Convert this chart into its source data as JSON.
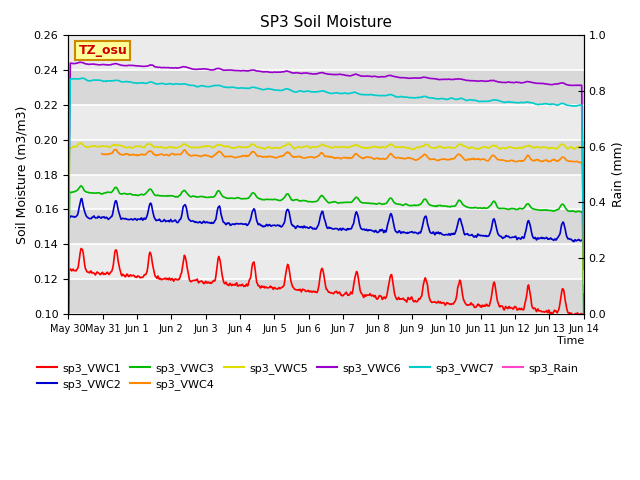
{
  "title": "SP3 Soil Moisture",
  "xlabel": "Time",
  "ylabel_left": "Soil Moisture (m3/m3)",
  "ylabel_right": "Rain (mm)",
  "ylim_left": [
    0.1,
    0.26
  ],
  "ylim_right": [
    0.0,
    1.0
  ],
  "yticks_left": [
    0.1,
    0.12,
    0.14,
    0.16,
    0.18,
    0.2,
    0.22,
    0.24,
    0.26
  ],
  "yticks_right": [
    0.0,
    0.2,
    0.4,
    0.6,
    0.8,
    1.0
  ],
  "num_days": 15,
  "colors": {
    "sp3_VWC1": "#ff0000",
    "sp3_VWC2": "#0000cc",
    "sp3_VWC3": "#00bb00",
    "sp3_VWC4": "#ff8800",
    "sp3_VWC5": "#dddd00",
    "sp3_VWC6": "#9900cc",
    "sp3_VWC7": "#00cccc",
    "sp3_Rain": "#ff44cc"
  },
  "xtick_labels": [
    "May 30",
    "May 31",
    "Jun 1",
    "Jun 2",
    "Jun 3",
    "Jun 4",
    "Jun 5",
    "Jun 6",
    "Jun 7",
    "Jun 8",
    "Jun 9",
    "Jun 10",
    "Jun 11",
    "Jun 12",
    "Jun 13",
    "Jun 14"
  ],
  "annotation_text": "TZ_osu",
  "annotation_color": "#cc0000",
  "annotation_bg": "#ffff99",
  "annotation_border": "#cc8800",
  "bg_dark": "#d8d8d8",
  "bg_light": "#ebebeb",
  "line_width": 1.2
}
